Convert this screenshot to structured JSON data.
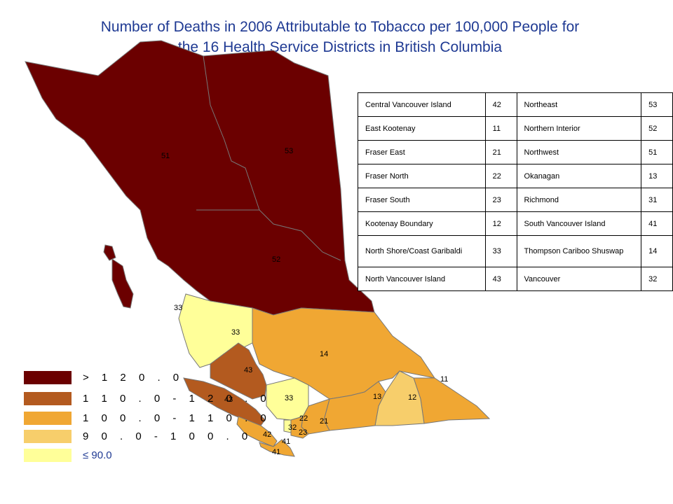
{
  "title_line1": "Number of Deaths in 2006 Attributable to Tobacco per 100,000 People for",
  "title_line2": "the 16 Health Service Districts in British Columbia",
  "colors": {
    "gt120": "#6b0000",
    "r110_120": "#b35a1f",
    "r100_110": "#f0a733",
    "r90_100": "#f7ce6b",
    "le90": "#ffff99",
    "border": "#777777"
  },
  "table": [
    [
      "Central Vancouver Island",
      "42",
      "Northeast",
      "53"
    ],
    [
      "East Kootenay",
      "11",
      "Northern Interior",
      "52"
    ],
    [
      "Fraser East",
      "21",
      "Northwest",
      "51"
    ],
    [
      "Fraser North",
      "22",
      "Okanagan",
      "13"
    ],
    [
      "Fraser South",
      "23",
      "Richmond",
      "31"
    ],
    [
      "Kootenay Boundary",
      "12",
      "South Vancouver Island",
      "41"
    ],
    [
      "North Shore/Coast Garibaldi",
      "33",
      "Thompson Cariboo Shuswap",
      "14"
    ],
    [
      "North Vancouver Island",
      "43",
      "Vancouver",
      "32"
    ]
  ],
  "legend": [
    {
      "label": "> 1 2 0 . 0",
      "color_key": "gt120"
    },
    {
      "label": "1 1 0 . 0  -  1 2 0 . 0",
      "color_key": "r110_120"
    },
    {
      "label": "1 0 0 . 0  -  1 1 0 . 0",
      "color_key": "r100_110"
    },
    {
      "label": "9 0 . 0  -  1 0 0 . 0",
      "color_key": "r90_100"
    },
    {
      "label": "≤ 90.0",
      "color_key": "le90"
    }
  ],
  "map_labels": {
    "northwest": "51",
    "northeast": "53",
    "northern_interior": "52",
    "north_shore": "33",
    "north_shore_coast": "33",
    "thompson": "14",
    "east_kootenay": "11",
    "north_van_island": "43",
    "north_van_island_2": "43",
    "fraser_north_area": "33",
    "okanagan": "13",
    "kootenay_boundary": "12",
    "fraser_north": "22",
    "fraser_east": "21",
    "vancouver": "32",
    "fraser_south": "23",
    "central_van_island": "42",
    "south_van_island_1": "41",
    "south_van_island_2": "41"
  }
}
